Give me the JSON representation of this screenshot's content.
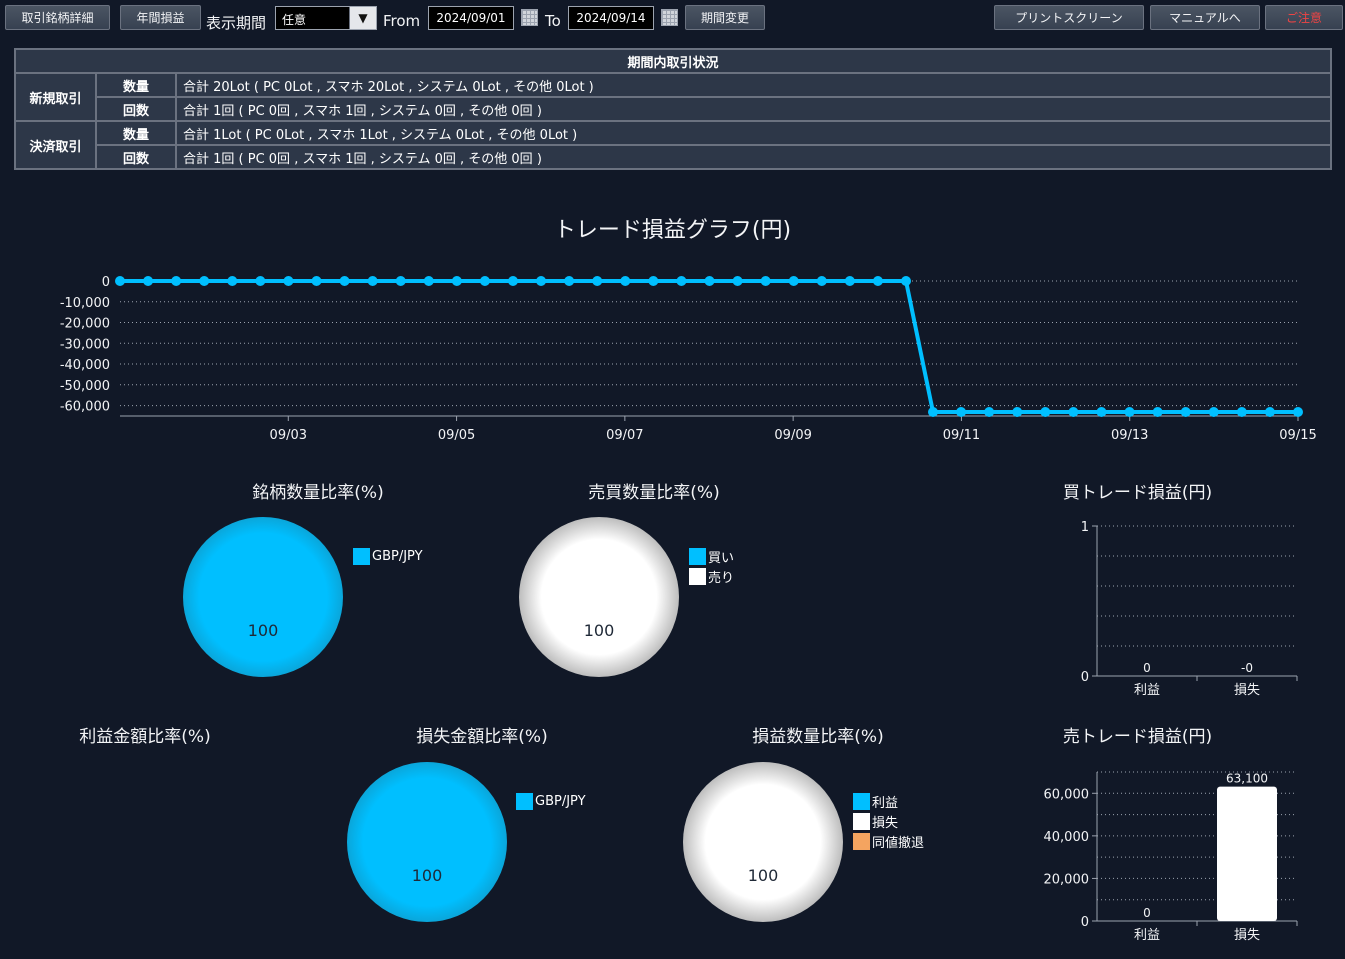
{
  "toolbar": {
    "detail_btn": "取引銘柄詳細",
    "annual_btn": "年間損益",
    "period_label": "表示期間",
    "period_value": "任意",
    "from_label": "From",
    "from_date": "2024/09/01",
    "to_label": "To",
    "to_date": "2024/09/14",
    "change_btn": "期間変更",
    "print_btn": "プリントスクリーン",
    "manual_btn": "マニュアルへ",
    "notice_btn": "ご注意"
  },
  "summary": {
    "header": "期間内取引状況",
    "new_label": "新規取引",
    "close_label": "決済取引",
    "qty_label": "数量",
    "count_label": "回数",
    "new_qty": "合計 20Lot ( PC 0Lot , スマホ 20Lot , システム 0Lot , その他 0Lot )",
    "new_count": "合計 1回 ( PC 0回 , スマホ 1回 , システム 0回 , その他 0回 )",
    "close_qty": "合計 1Lot ( PC 0Lot , スマホ 1Lot , システム 0Lot , その他 0Lot )",
    "close_count": "合計 1回 ( PC 0回 , スマホ 1回 , システム 0回 , その他 0回 )"
  },
  "colors": {
    "accent": "#00bfff",
    "bg": "#111827",
    "orange": "#f4a460"
  },
  "chart_data": [
    {
      "type": "line",
      "title": "トレード損益グラフ(円)",
      "ylim": [
        -63100,
        0
      ],
      "yticks": [
        "0",
        "-10,000",
        "-20,000",
        "-30,000",
        "-40,000",
        "-50,000",
        "-60,000"
      ],
      "xticks": [
        "09/03",
        "09/05",
        "09/07",
        "09/09",
        "09/11",
        "09/13",
        "09/15"
      ],
      "x_range": [
        "09/01",
        "09/15"
      ],
      "points_before": 29,
      "points_after": 14,
      "value_before": 0,
      "value_after": -63100
    },
    {
      "type": "pie",
      "title": "銘柄数量比率(%)",
      "slices": [
        {
          "label": "GBP/JPY",
          "value": 100,
          "color": "#00bfff"
        }
      ],
      "value_label": "100"
    },
    {
      "type": "pie",
      "title": "売買数量比率(%)",
      "slices": [
        {
          "label": "買い",
          "value": 0,
          "color": "#00bfff"
        },
        {
          "label": "売り",
          "value": 100,
          "color": "#ffffff"
        }
      ],
      "value_label": "100"
    },
    {
      "type": "bar",
      "title": "買トレード損益(円)",
      "categories": [
        "利益",
        "損失"
      ],
      "values": [
        0,
        0
      ],
      "labels": [
        "0",
        "-0"
      ],
      "ylim": [
        0,
        1
      ],
      "yticks": [
        "0",
        "1"
      ]
    },
    {
      "type": "pie",
      "title": "利益金額比率(%)",
      "slices": []
    },
    {
      "type": "pie",
      "title": "損失金額比率(%)",
      "slices": [
        {
          "label": "GBP/JPY",
          "value": 100,
          "color": "#00bfff"
        }
      ],
      "value_label": "100"
    },
    {
      "type": "pie",
      "title": "損益数量比率(%)",
      "slices": [
        {
          "label": "利益",
          "value": 0,
          "color": "#00bfff"
        },
        {
          "label": "損失",
          "value": 100,
          "color": "#ffffff"
        },
        {
          "label": "同値撤退",
          "value": 0,
          "color": "#f4a460"
        }
      ],
      "value_label": "100"
    },
    {
      "type": "bar",
      "title": "売トレード損益(円)",
      "categories": [
        "利益",
        "損失"
      ],
      "values": [
        0,
        63100
      ],
      "labels": [
        "0",
        "63,100"
      ],
      "ylim": [
        0,
        70000
      ],
      "yticks": [
        "0",
        "20,000",
        "40,000",
        "60,000"
      ]
    }
  ]
}
